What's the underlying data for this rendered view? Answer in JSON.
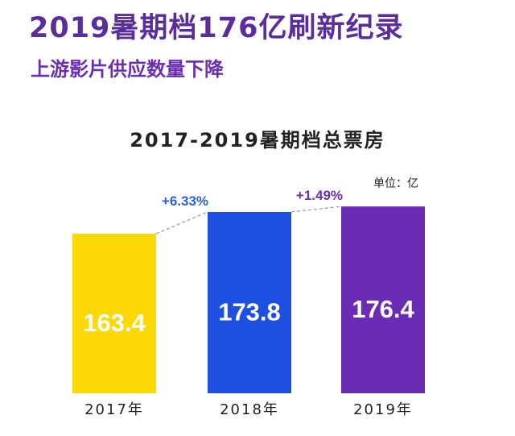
{
  "header": {
    "headline": "2019暑期档176亿刷新纪录",
    "subhead": "上游影片供应数量下降"
  },
  "colors": {
    "headline": "#5b2d9c",
    "bar_2017": "#fbd806",
    "bar_2018": "#1d4fe0",
    "bar_2019": "#6a2cb5",
    "growth_2018": "#2c5fd6",
    "growth_2019": "#6a2cb5"
  },
  "chart_data": {
    "type": "bar",
    "title": "2017-2019暑期档总票房",
    "unit": "单位：亿",
    "categories": [
      "2017年",
      "2018年",
      "2019年"
    ],
    "values": [
      163.4,
      173.8,
      176.4
    ],
    "value_labels": [
      "163.4",
      "173.8",
      "176.4"
    ],
    "growth": [
      {
        "label": "+6.33%",
        "from": "2017年",
        "to": "2018年"
      },
      {
        "label": "+1.49%",
        "from": "2018年",
        "to": "2019年"
      }
    ],
    "ylim": [
      150,
      180
    ],
    "grid": false,
    "legend": "none"
  }
}
